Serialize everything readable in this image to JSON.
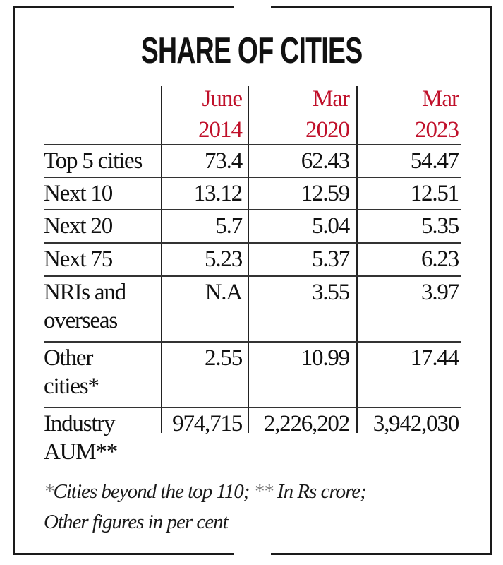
{
  "title": "SHARE OF CITIES",
  "colors": {
    "header_red": "#c0102a",
    "text": "#111111",
    "rule": "#333333"
  },
  "table": {
    "headers": [
      {
        "line1": "June",
        "line2": "2014"
      },
      {
        "line1": "Mar",
        "line2": "2020"
      },
      {
        "line1": "Mar",
        "line2": "2023"
      }
    ],
    "rows": [
      {
        "label_line1": "Top 5 cities",
        "label_line2": "",
        "values": [
          "73.4",
          "62.43",
          "54.47"
        ]
      },
      {
        "label_line1": "Next 10",
        "label_line2": "",
        "values": [
          "13.12",
          "12.59",
          "12.51"
        ]
      },
      {
        "label_line1": "Next 20",
        "label_line2": "",
        "values": [
          "5.7",
          "5.04",
          "5.35"
        ]
      },
      {
        "label_line1": "Next 75",
        "label_line2": "",
        "values": [
          "5.23",
          "5.37",
          "6.23"
        ]
      },
      {
        "label_line1": "NRIs and",
        "label_line2": "overseas",
        "values": [
          "N.A",
          "3.55",
          "3.97"
        ]
      },
      {
        "label_line1": "Other",
        "label_line2": "cities*",
        "values": [
          "2.55",
          "10.99",
          "17.44"
        ]
      },
      {
        "label_line1": "Industry",
        "label_line2": "AUM**",
        "values": [
          "974,715",
          "2,226,202",
          "3,942,030"
        ]
      }
    ]
  },
  "footnote": {
    "line1_ast1": "*",
    "line1_text1": "Cities beyond the top 110; ",
    "line1_ast2": "**",
    "line1_text2": " In Rs crore;",
    "line2": "Other figures in per cent"
  },
  "chart_data": {
    "type": "table",
    "title": "SHARE OF CITIES",
    "columns": [
      "June 2014",
      "Mar 2020",
      "Mar 2023"
    ],
    "rows": [
      {
        "category": "Top 5 cities",
        "values": [
          73.4,
          62.43,
          54.47
        ]
      },
      {
        "category": "Next 10",
        "values": [
          13.12,
          12.59,
          12.51
        ]
      },
      {
        "category": "Next 20",
        "values": [
          5.7,
          5.04,
          5.35
        ]
      },
      {
        "category": "Next 75",
        "values": [
          5.23,
          5.37,
          6.23
        ]
      },
      {
        "category": "NRIs and overseas",
        "values": [
          null,
          3.55,
          3.97
        ],
        "notes": [
          "N.A",
          "",
          ""
        ]
      },
      {
        "category": "Other cities*",
        "values": [
          2.55,
          10.99,
          17.44
        ]
      },
      {
        "category": "Industry AUM**",
        "values": [
          974715,
          2226202,
          3942030
        ]
      }
    ],
    "units": "per cent (Industry AUM in Rs crore)",
    "footnotes": [
      "*Cities beyond the top 110",
      "** In Rs crore",
      "Other figures in per cent"
    ]
  }
}
